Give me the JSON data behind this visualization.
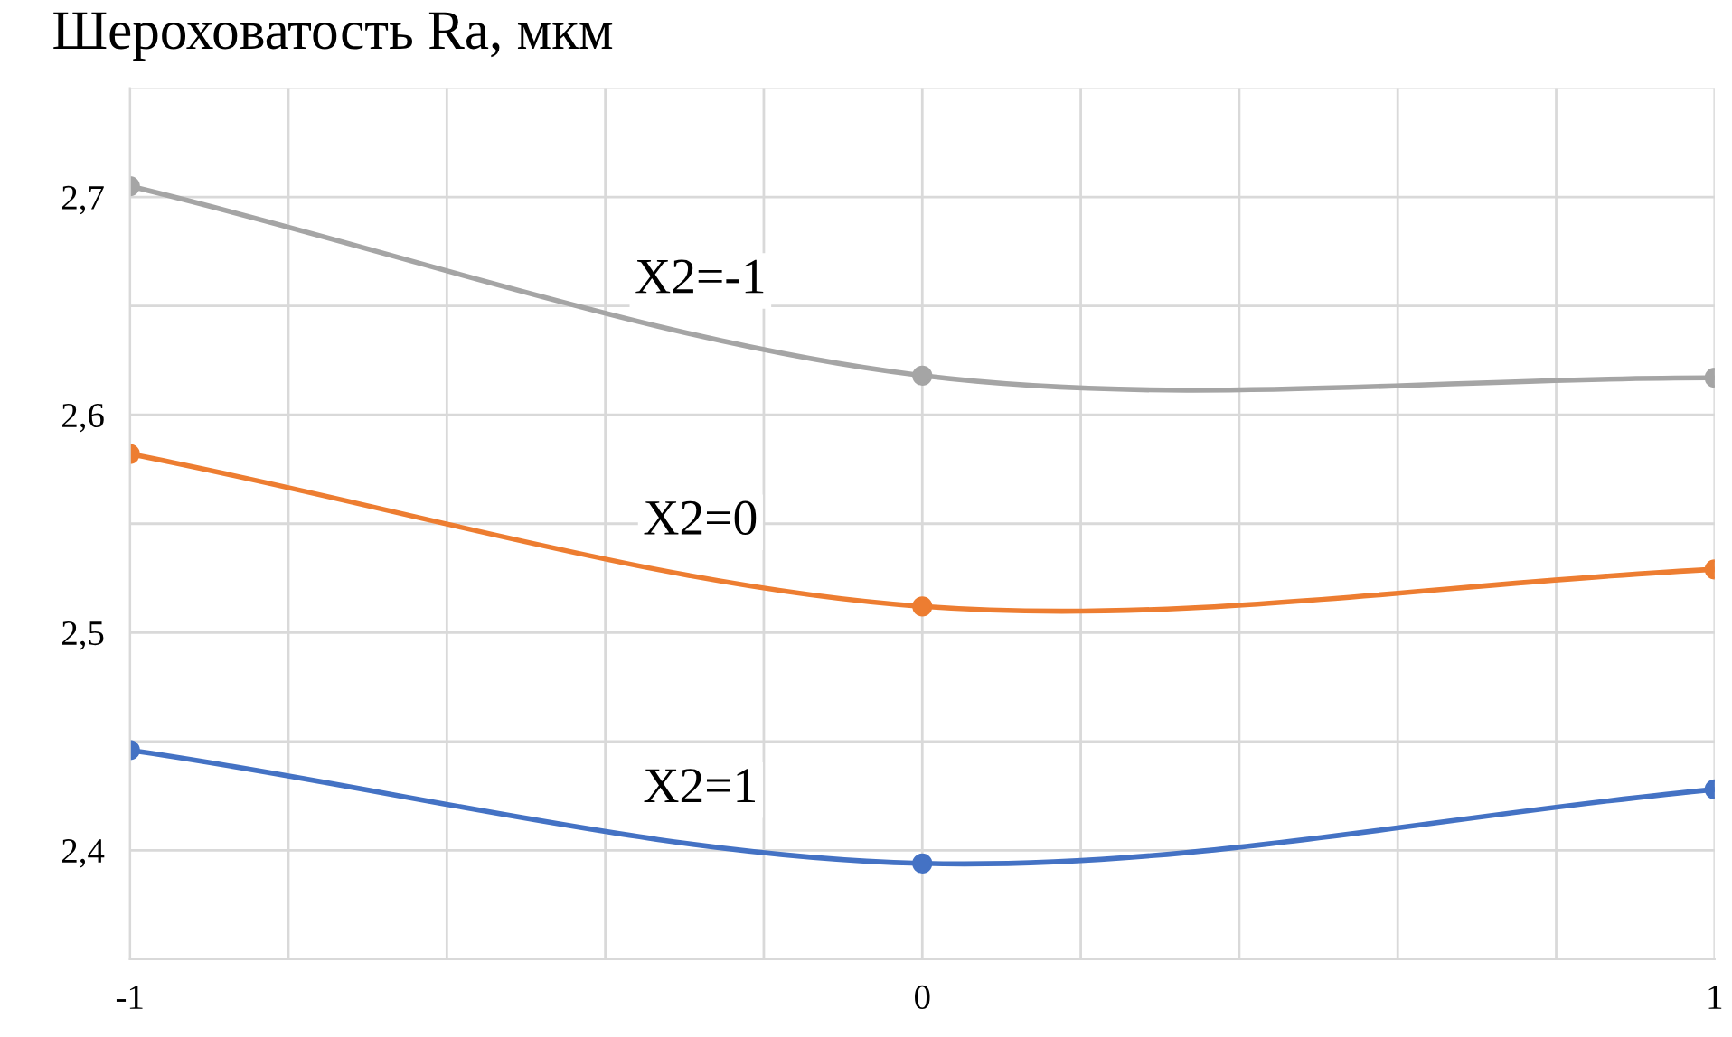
{
  "chart_data": {
    "type": "line",
    "title": "Шероховатость Ra, мкм",
    "x": [
      -1,
      0,
      1
    ],
    "series": [
      {
        "name": "X2=-1",
        "color": "#a5a5a5",
        "values": [
          2.705,
          2.618,
          2.617
        ]
      },
      {
        "name": "X2=0",
        "color": "#ed7d31",
        "values": [
          2.582,
          2.512,
          2.529
        ]
      },
      {
        "name": "X2=1",
        "color": "#4472c4",
        "values": [
          2.446,
          2.394,
          2.428
        ]
      }
    ],
    "xlim": [
      -1,
      1
    ],
    "xticks": [
      -1,
      {
        "value": -0.8,
        "label": null
      },
      {
        "value": -0.6,
        "label": null
      },
      {
        "value": -0.4,
        "label": null
      },
      {
        "value": -0.2,
        "label": null
      },
      0,
      {
        "value": 0.2,
        "label": null
      },
      {
        "value": 0.4,
        "label": null
      },
      {
        "value": 0.6,
        "label": null
      },
      {
        "value": 0.8,
        "label": null
      },
      1
    ],
    "ylim": [
      2.35,
      2.75
    ],
    "yticks": [
      {
        "value": 2.4,
        "label": "2,4"
      },
      {
        "value": 2.45,
        "label": null
      },
      {
        "value": 2.5,
        "label": "2,5"
      },
      {
        "value": 2.55,
        "label": null
      },
      {
        "value": 2.6,
        "label": "2,6"
      },
      {
        "value": 2.65,
        "label": null
      },
      {
        "value": 2.7,
        "label": "2,7"
      },
      {
        "value": 2.75,
        "label": null
      }
    ],
    "grid": true,
    "marker": "circle",
    "line_style": "solid",
    "legend": false
  }
}
